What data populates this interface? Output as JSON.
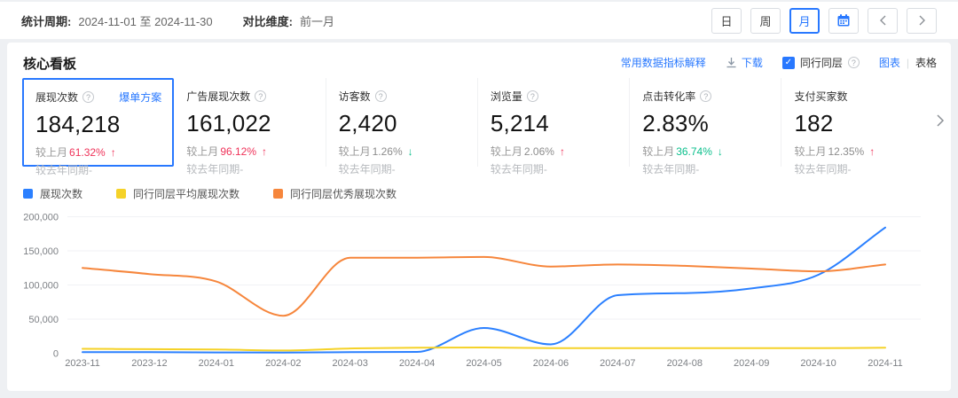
{
  "topbar": {
    "period_label": "统计周期:",
    "period_value": "2024-11-01 至 2024-11-30",
    "compare_label": "对比维度:",
    "compare_value": "前一月",
    "granularity_buttons": [
      "日",
      "周",
      "月"
    ],
    "selected_granularity": "月"
  },
  "panel": {
    "title": "核心看板",
    "toolbar": {
      "explain_link": "常用数据指标解释",
      "download_label": "下载",
      "peer_checkbox_label": "同行同层",
      "peer_checked": true,
      "view_chart": "图表",
      "divider": "|",
      "view_table": "表格"
    }
  },
  "cards": [
    {
      "title": "展现次数",
      "info": true,
      "action": "爆单方案",
      "value": "184,218",
      "mom_label": "较上月",
      "mom_pct": "61.32%",
      "arrow": "up",
      "pct_class": "red",
      "yoy": "较去年同期-",
      "selected": true
    },
    {
      "title": "广告展现次数",
      "info": true,
      "action": "",
      "value": "161,022",
      "mom_label": "较上月",
      "mom_pct": "96.12%",
      "arrow": "up",
      "pct_class": "red",
      "yoy": "较去年同期-",
      "selected": false
    },
    {
      "title": "访客数",
      "info": true,
      "action": "",
      "value": "2,420",
      "mom_label": "较上月",
      "mom_pct": "1.26%",
      "arrow": "down",
      "pct_class": "gray",
      "yoy": "较去年同期-",
      "selected": false
    },
    {
      "title": "浏览量",
      "info": true,
      "action": "",
      "value": "5,214",
      "mom_label": "较上月",
      "mom_pct": "2.06%",
      "arrow": "up",
      "pct_class": "gray",
      "yoy": "较去年同期-",
      "selected": false
    },
    {
      "title": "点击转化率",
      "info": true,
      "action": "",
      "value": "2.83%",
      "mom_label": "较上月",
      "mom_pct": "36.74%",
      "arrow": "down",
      "pct_class": "green",
      "yoy": "较去年同期-",
      "selected": false
    },
    {
      "title": "支付买家数",
      "info": false,
      "action": "",
      "value": "182",
      "mom_label": "较上月",
      "mom_pct": "12.35%",
      "arrow": "up",
      "pct_class": "gray",
      "yoy": "较去年同期-",
      "selected": false
    }
  ],
  "chart_data": {
    "type": "line",
    "x": [
      "2023-11",
      "2023-12",
      "2024-01",
      "2024-02",
      "2024-03",
      "2024-04",
      "2024-05",
      "2024-06",
      "2024-07",
      "2024-08",
      "2024-09",
      "2024-10",
      "2024-11"
    ],
    "series": [
      {
        "name": "展现次数",
        "color": "#2b80ff",
        "values": [
          1500,
          1500,
          1200,
          1000,
          1500,
          2000,
          37000,
          13000,
          85000,
          88000,
          95000,
          115000,
          184218
        ]
      },
      {
        "name": "同行同层平均展现次数",
        "color": "#f5d228",
        "values": [
          6500,
          6000,
          5500,
          4000,
          7000,
          8000,
          8500,
          7500,
          7500,
          7500,
          7500,
          7500,
          8000
        ]
      },
      {
        "name": "同行同层优秀展现次数",
        "color": "#f6863c",
        "values": [
          125000,
          116000,
          105000,
          55000,
          140000,
          140000,
          141000,
          127000,
          130000,
          128000,
          124000,
          120000,
          130000
        ]
      }
    ],
    "ylim": [
      0,
      200000
    ],
    "yticks": [
      {
        "label": "200,000",
        "v": 200000
      },
      {
        "label": "150,000",
        "v": 150000
      },
      {
        "label": "100,000",
        "v": 100000
      },
      {
        "label": "50,000",
        "v": 50000
      },
      {
        "label": "0",
        "v": 0
      }
    ],
    "grid": true,
    "legend_position": "top-left",
    "smooth": true
  },
  "colors": {
    "accent": "#2878ff",
    "up_red": "#ef3259",
    "down_green": "#0abf8c"
  }
}
